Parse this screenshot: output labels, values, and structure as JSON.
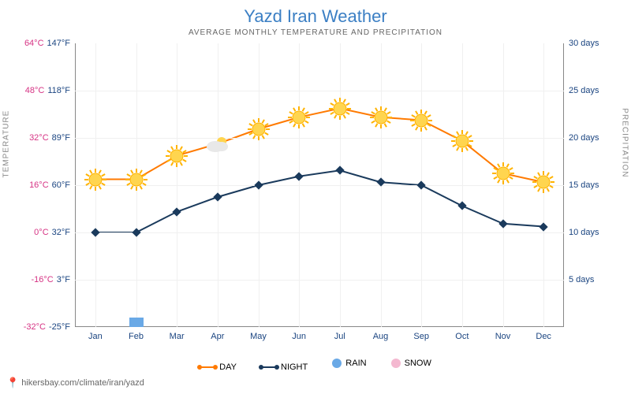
{
  "title": "Yazd Iran Weather",
  "subtitle": "AVERAGE MONTHLY TEMPERATURE AND PRECIPITATION",
  "y_label_left": "TEMPERATURE",
  "y_label_right": "PRECIPITATION",
  "footer_url": "hikersbay.com/climate/iran/yazd",
  "chart": {
    "type": "dual-axis-line",
    "background_color": "#ffffff",
    "grid_color": "#f0f0f0",
    "months": [
      "Jan",
      "Feb",
      "Mar",
      "Apr",
      "May",
      "Jun",
      "Jul",
      "Aug",
      "Sep",
      "Oct",
      "Nov",
      "Dec"
    ],
    "temp_axis": {
      "min": -32,
      "max": 64,
      "step": 16,
      "ticks_c": [
        "-32°C",
        "-16°C",
        "0°C",
        "16°C",
        "32°C",
        "48°C",
        "64°C"
      ],
      "ticks_f": [
        "-25°F",
        "3°F",
        "32°F",
        "60°F",
        "89°F",
        "118°F",
        "147°F"
      ],
      "c_color": "#d63384",
      "f_color": "#1a4480"
    },
    "precip_axis": {
      "min": 0,
      "max": 30,
      "step": 5,
      "ticks": [
        "",
        "5 days",
        "10 days",
        "15 days",
        "20 days",
        "25 days",
        "30 days"
      ],
      "color": "#1a4480"
    },
    "day": {
      "values": [
        18,
        18,
        26,
        30,
        35,
        39,
        42,
        39,
        38,
        31,
        20,
        17
      ],
      "line_color": "#ff7a00",
      "line_width": 2,
      "marker": "sun",
      "marker_size": 30,
      "markers": [
        "sun",
        "sun",
        "sun",
        "cloud",
        "sun",
        "sun",
        "sun",
        "sun",
        "sun",
        "sun",
        "sun",
        "sun"
      ]
    },
    "night": {
      "values": [
        0,
        0,
        7,
        12,
        16,
        19,
        21,
        17,
        16,
        9,
        3,
        2
      ],
      "line_color": "#1a3a5c",
      "line_width": 2,
      "marker": "diamond",
      "marker_size": 8,
      "marker_color": "#1a3a5c"
    },
    "rain": {
      "values": [
        0,
        1,
        0,
        0,
        0,
        0,
        0,
        0,
        0,
        0,
        0,
        0
      ],
      "color": "#6aa9e6"
    },
    "snow": {
      "values": [
        0,
        0,
        0,
        0,
        0,
        0,
        0,
        0,
        0,
        0,
        0,
        0
      ],
      "color": "#f4b8d0"
    }
  },
  "legend": {
    "day": "DAY",
    "night": "NIGHT",
    "rain": "RAIN",
    "snow": "SNOW",
    "day_color": "#ff7a00",
    "night_color": "#1a3a5c",
    "rain_color": "#6aa9e6",
    "snow_color": "#f4b8d0"
  }
}
